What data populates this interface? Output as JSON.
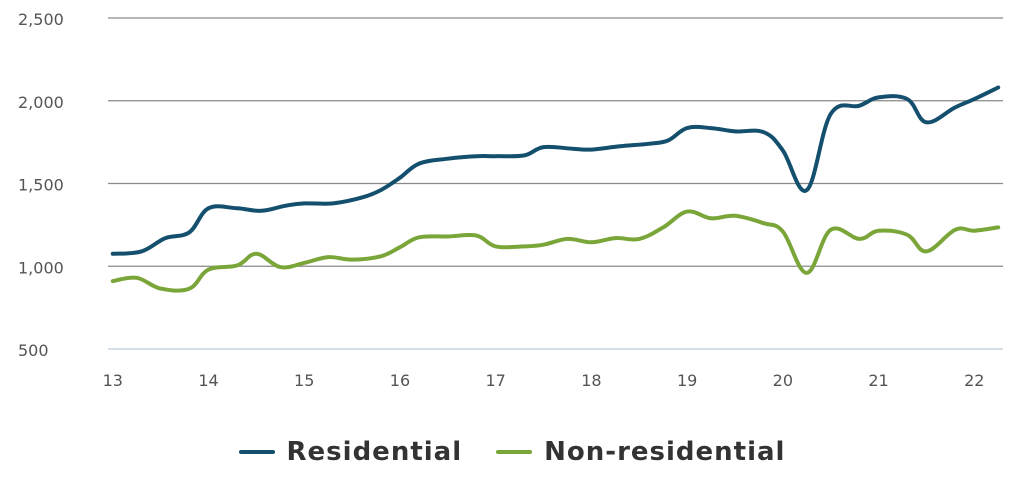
{
  "chart_data": {
    "type": "line",
    "title": "",
    "xlabel": "",
    "ylabel": "",
    "xlim": [
      12.95,
      22.3
    ],
    "ylim": [
      500,
      2500
    ],
    "y_ticks": [
      500,
      1000,
      1500,
      2000,
      2500
    ],
    "y_tick_labels": [
      "500",
      "1,000",
      "1,500",
      "2,000",
      "2,500"
    ],
    "x_ticks": [
      13,
      14,
      15,
      16,
      17,
      18,
      19,
      20,
      21,
      22
    ],
    "x_tick_labels": [
      "13",
      "14",
      "15",
      "16",
      "17",
      "18",
      "19",
      "20",
      "21",
      "22"
    ],
    "grid": true,
    "legend_position": "bottom-center",
    "series": [
      {
        "name": "Residential",
        "color": "#14506e",
        "x": [
          13.0,
          13.3,
          13.55,
          13.8,
          14.0,
          14.3,
          14.55,
          14.8,
          15.0,
          15.3,
          15.6,
          15.8,
          16.0,
          16.2,
          16.5,
          16.8,
          17.0,
          17.3,
          17.5,
          17.8,
          18.0,
          18.3,
          18.6,
          18.8,
          19.0,
          19.25,
          19.5,
          19.8,
          20.0,
          20.25,
          20.5,
          20.8,
          21.0,
          21.3,
          21.5,
          21.8,
          22.0,
          22.25
        ],
        "y": [
          1075,
          1090,
          1170,
          1205,
          1350,
          1350,
          1335,
          1365,
          1380,
          1380,
          1415,
          1460,
          1535,
          1620,
          1650,
          1665,
          1665,
          1670,
          1720,
          1710,
          1705,
          1725,
          1740,
          1760,
          1835,
          1835,
          1815,
          1810,
          1700,
          1460,
          1920,
          1970,
          2020,
          2010,
          1870,
          1960,
          2010,
          2080
        ]
      },
      {
        "name": "Non-residential",
        "color": "#7aa639",
        "x": [
          13.0,
          13.25,
          13.5,
          13.8,
          14.0,
          14.3,
          14.5,
          14.75,
          15.0,
          15.25,
          15.5,
          15.8,
          16.0,
          16.2,
          16.5,
          16.8,
          17.0,
          17.3,
          17.5,
          17.75,
          18.0,
          18.25,
          18.5,
          18.75,
          19.0,
          19.25,
          19.5,
          19.8,
          20.0,
          20.25,
          20.5,
          20.8,
          21.0,
          21.3,
          21.5,
          21.8,
          22.0,
          22.25
        ],
        "y": [
          910,
          930,
          865,
          865,
          980,
          1005,
          1075,
          995,
          1020,
          1055,
          1040,
          1060,
          1115,
          1175,
          1180,
          1185,
          1120,
          1120,
          1130,
          1165,
          1145,
          1170,
          1165,
          1235,
          1330,
          1290,
          1305,
          1260,
          1210,
          960,
          1220,
          1165,
          1215,
          1190,
          1090,
          1220,
          1215,
          1235
        ]
      }
    ]
  }
}
